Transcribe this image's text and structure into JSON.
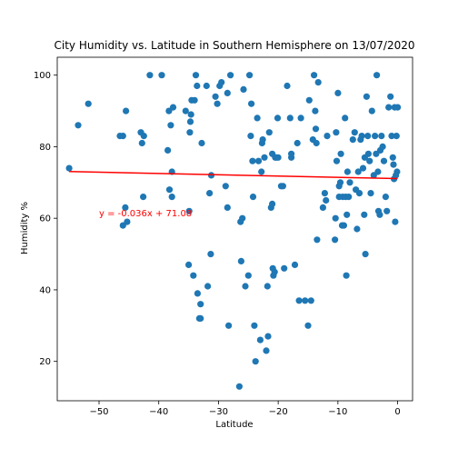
{
  "chart_data": {
    "type": "scatter",
    "title": "City Humidity vs. Latitude in Southern Hemisphere on 13/07/2020",
    "xlabel": "Latitude",
    "ylabel": "Humidity %",
    "xlim": [
      -57,
      2.5
    ],
    "ylim": [
      9,
      105
    ],
    "xticks": [
      -50,
      -40,
      -30,
      -20,
      -10,
      0
    ],
    "yticks": [
      20,
      40,
      60,
      80,
      100
    ],
    "marker_color": "#1f77b4",
    "points": [
      [
        -55,
        74
      ],
      [
        -53.5,
        86
      ],
      [
        -51.8,
        92
      ],
      [
        -46.5,
        83
      ],
      [
        -46,
        83
      ],
      [
        -46,
        58
      ],
      [
        -45.6,
        63
      ],
      [
        -45.5,
        90
      ],
      [
        -45.3,
        59
      ],
      [
        -43,
        84
      ],
      [
        -42.8,
        81
      ],
      [
        -42.6,
        66
      ],
      [
        -42.5,
        83
      ],
      [
        -41.5,
        100
      ],
      [
        -39.5,
        100
      ],
      [
        -38.5,
        79
      ],
      [
        -38.3,
        90
      ],
      [
        -38.2,
        68
      ],
      [
        -38,
        86
      ],
      [
        -37.8,
        73
      ],
      [
        -37.8,
        66
      ],
      [
        -37.6,
        91
      ],
      [
        -35.5,
        90
      ],
      [
        -35,
        47
      ],
      [
        -34.9,
        62
      ],
      [
        -34.8,
        84
      ],
      [
        -34.7,
        87
      ],
      [
        -34.6,
        89
      ],
      [
        -34.5,
        93
      ],
      [
        -34.2,
        44
      ],
      [
        -34,
        93
      ],
      [
        -33.8,
        100
      ],
      [
        -33.6,
        97
      ],
      [
        -33.5,
        39
      ],
      [
        -33.2,
        32
      ],
      [
        -33,
        36
      ],
      [
        -33,
        32
      ],
      [
        -32.8,
        81
      ],
      [
        -32,
        97
      ],
      [
        -31.8,
        41
      ],
      [
        -31.5,
        67
      ],
      [
        -31.3,
        50
      ],
      [
        -31.2,
        72
      ],
      [
        -30.5,
        94
      ],
      [
        -30.2,
        92
      ],
      [
        -29.8,
        97
      ],
      [
        -29.5,
        98
      ],
      [
        -28.8,
        69
      ],
      [
        -28.5,
        95
      ],
      [
        -28.5,
        63
      ],
      [
        -28.3,
        30
      ],
      [
        -28,
        100
      ],
      [
        -26.5,
        13
      ],
      [
        -26.3,
        59
      ],
      [
        -26.2,
        48
      ],
      [
        -26,
        60
      ],
      [
        -25.8,
        96
      ],
      [
        -25.5,
        41
      ],
      [
        -25,
        44
      ],
      [
        -24.8,
        100
      ],
      [
        -24.6,
        83
      ],
      [
        -24.5,
        92
      ],
      [
        -24.3,
        76
      ],
      [
        -24.2,
        66
      ],
      [
        -24,
        30
      ],
      [
        -23.8,
        20
      ],
      [
        -23.5,
        88
      ],
      [
        -23.3,
        76
      ],
      [
        -23,
        26
      ],
      [
        -22.8,
        73
      ],
      [
        -22.7,
        81
      ],
      [
        -22.6,
        82
      ],
      [
        -22.3,
        77
      ],
      [
        -22,
        23
      ],
      [
        -21.8,
        41
      ],
      [
        -21.7,
        27
      ],
      [
        -21.5,
        84
      ],
      [
        -21.2,
        63
      ],
      [
        -21,
        78
      ],
      [
        -21,
        64
      ],
      [
        -20.9,
        46
      ],
      [
        -20.8,
        44
      ],
      [
        -20.6,
        45
      ],
      [
        -20.5,
        77
      ],
      [
        -20.3,
        77
      ],
      [
        -20.1,
        88
      ],
      [
        -20,
        77
      ],
      [
        -19.5,
        69
      ],
      [
        -19.2,
        69
      ],
      [
        -19,
        46
      ],
      [
        -18.5,
        97
      ],
      [
        -18,
        88
      ],
      [
        -17.8,
        77
      ],
      [
        -17.8,
        78
      ],
      [
        -17.2,
        47
      ],
      [
        -16.8,
        81
      ],
      [
        -16.5,
        37
      ],
      [
        -16.2,
        88
      ],
      [
        -15.5,
        37
      ],
      [
        -15,
        30
      ],
      [
        -14.8,
        93
      ],
      [
        -14.5,
        37
      ],
      [
        -14.2,
        82
      ],
      [
        -14,
        100
      ],
      [
        -13.8,
        90
      ],
      [
        -13.7,
        85
      ],
      [
        -13.6,
        81
      ],
      [
        -13.5,
        54
      ],
      [
        -13.3,
        98
      ],
      [
        -12.5,
        63
      ],
      [
        -12.2,
        67
      ],
      [
        -12,
        65
      ],
      [
        -11.8,
        83
      ],
      [
        -10.5,
        54
      ],
      [
        -10.4,
        60
      ],
      [
        -10.3,
        84
      ],
      [
        -10.2,
        76
      ],
      [
        -10,
        95
      ],
      [
        -9.8,
        69
      ],
      [
        -9.8,
        66
      ],
      [
        -9.6,
        70
      ],
      [
        -9.5,
        78
      ],
      [
        -9.3,
        58
      ],
      [
        -9.2,
        66
      ],
      [
        -9,
        58
      ],
      [
        -8.8,
        88
      ],
      [
        -8.7,
        66
      ],
      [
        -8.6,
        44
      ],
      [
        -8.5,
        61
      ],
      [
        -8.4,
        73
      ],
      [
        -8.2,
        66
      ],
      [
        -8,
        70
      ],
      [
        -7.5,
        82
      ],
      [
        -7.2,
        84
      ],
      [
        -7,
        68
      ],
      [
        -6.8,
        57
      ],
      [
        -6.6,
        73
      ],
      [
        -6.4,
        67
      ],
      [
        -6.2,
        82
      ],
      [
        -6,
        83
      ],
      [
        -5.8,
        74
      ],
      [
        -5.6,
        61
      ],
      [
        -5.5,
        77
      ],
      [
        -5.4,
        50
      ],
      [
        -5.2,
        94
      ],
      [
        -5,
        83
      ],
      [
        -4.9,
        78
      ],
      [
        -4.7,
        76
      ],
      [
        -4.5,
        67
      ],
      [
        -4.3,
        90
      ],
      [
        -4,
        72
      ],
      [
        -3.8,
        83
      ],
      [
        -3.6,
        78
      ],
      [
        -3.5,
        100
      ],
      [
        -3.3,
        73
      ],
      [
        -3.2,
        62
      ],
      [
        -3,
        61
      ],
      [
        -2.9,
        79
      ],
      [
        -2.7,
        83
      ],
      [
        -2.5,
        80
      ],
      [
        -2.3,
        76
      ],
      [
        -2,
        66
      ],
      [
        -1.8,
        62
      ],
      [
        -1.5,
        91
      ],
      [
        -1.2,
        94
      ],
      [
        -1,
        83
      ],
      [
        -0.8,
        77
      ],
      [
        -0.7,
        75
      ],
      [
        -0.6,
        71
      ],
      [
        -0.5,
        91
      ],
      [
        -0.4,
        59
      ],
      [
        -0.3,
        72
      ],
      [
        -0.2,
        83
      ],
      [
        -0.1,
        73
      ],
      [
        0,
        91
      ]
    ],
    "regression": {
      "slope": -0.036,
      "intercept": 71.08,
      "x_range": [
        -55,
        0
      ],
      "color": "#ff0000",
      "equation_label": "y = -0.036x + 71.08",
      "label_x": -50,
      "label_y": 60
    },
    "grid": false,
    "legend": "none"
  }
}
